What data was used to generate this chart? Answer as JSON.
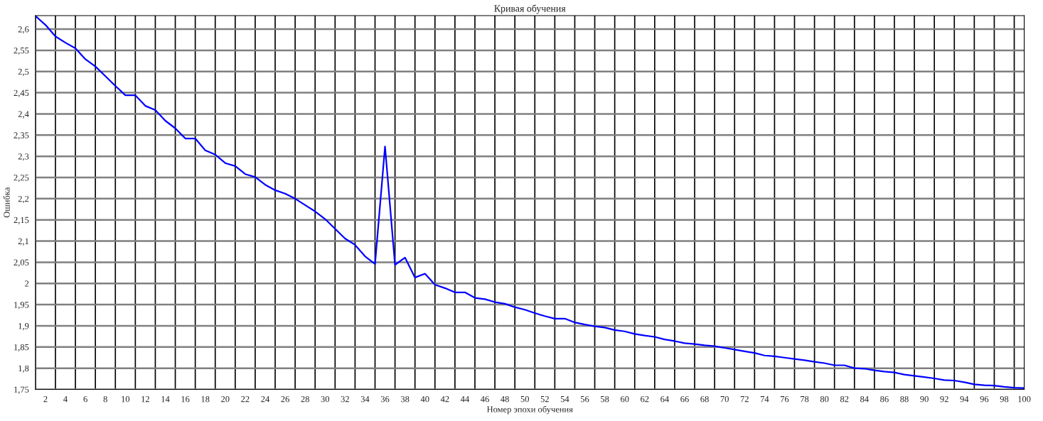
{
  "chart_data": {
    "type": "line",
    "title": "Кривая обучения",
    "xlabel": "Номер эпохи обучения",
    "ylabel": "Ошибка",
    "x": [
      1,
      2,
      3,
      4,
      5,
      6,
      7,
      8,
      9,
      10,
      11,
      12,
      13,
      14,
      15,
      16,
      17,
      18,
      19,
      20,
      21,
      22,
      23,
      24,
      25,
      26,
      27,
      28,
      29,
      30,
      31,
      32,
      33,
      34,
      35,
      36,
      37,
      38,
      39,
      40,
      41,
      42,
      43,
      44,
      45,
      46,
      47,
      48,
      49,
      50,
      51,
      52,
      53,
      54,
      55,
      56,
      57,
      58,
      59,
      60,
      61,
      62,
      63,
      64,
      65,
      66,
      67,
      68,
      69,
      70,
      71,
      72,
      73,
      74,
      75,
      76,
      77,
      78,
      79,
      80,
      81,
      82,
      83,
      84,
      85,
      86,
      87,
      88,
      89,
      90,
      91,
      92,
      93,
      94,
      95,
      96,
      97,
      98,
      99,
      100
    ],
    "series": [
      {
        "color": "#0000ff",
        "values": [
          2.631,
          2.61,
          2.583,
          2.568,
          2.555,
          2.529,
          2.512,
          2.489,
          2.466,
          2.444,
          2.444,
          2.419,
          2.409,
          2.384,
          2.366,
          2.342,
          2.342,
          2.314,
          2.304,
          2.284,
          2.277,
          2.258,
          2.251,
          2.233,
          2.22,
          2.212,
          2.2,
          2.185,
          2.17,
          2.152,
          2.129,
          2.106,
          2.091,
          2.064,
          2.046,
          2.323,
          2.044,
          2.061,
          2.014,
          2.023,
          1.997,
          1.989,
          1.979,
          1.979,
          1.966,
          1.963,
          1.956,
          1.952,
          1.944,
          1.938,
          1.93,
          1.923,
          1.917,
          1.917,
          1.908,
          1.903,
          1.899,
          1.896,
          1.89,
          1.887,
          1.881,
          1.877,
          1.874,
          1.868,
          1.864,
          1.859,
          1.857,
          1.854,
          1.852,
          1.848,
          1.844,
          1.84,
          1.836,
          1.83,
          1.828,
          1.825,
          1.822,
          1.819,
          1.815,
          1.812,
          1.807,
          1.807,
          1.8,
          1.799,
          1.795,
          1.792,
          1.79,
          1.785,
          1.782,
          1.779,
          1.776,
          1.772,
          1.771,
          1.767,
          1.762,
          1.76,
          1.759,
          1.756,
          1.754,
          1.753
        ]
      }
    ],
    "xlim": [
      1,
      100
    ],
    "xticks": [
      {
        "value": 1,
        "label": null
      },
      2,
      {
        "value": 3,
        "label": null
      },
      4,
      {
        "value": 5,
        "label": null
      },
      6,
      {
        "value": 7,
        "label": null
      },
      8,
      {
        "value": 9,
        "label": null
      },
      10,
      {
        "value": 11,
        "label": null
      },
      12,
      {
        "value": 13,
        "label": null
      },
      14,
      {
        "value": 15,
        "label": null
      },
      16,
      {
        "value": 17,
        "label": null
      },
      18,
      {
        "value": 19,
        "label": null
      },
      20,
      {
        "value": 21,
        "label": null
      },
      22,
      {
        "value": 23,
        "label": null
      },
      24,
      {
        "value": 25,
        "label": null
      },
      26,
      {
        "value": 27,
        "label": null
      },
      28,
      {
        "value": 29,
        "label": null
      },
      30,
      {
        "value": 31,
        "label": null
      },
      32,
      {
        "value": 33,
        "label": null
      },
      34,
      {
        "value": 35,
        "label": null
      },
      36,
      {
        "value": 37,
        "label": null
      },
      38,
      {
        "value": 39,
        "label": null
      },
      40,
      {
        "value": 41,
        "label": null
      },
      42,
      {
        "value": 43,
        "label": null
      },
      44,
      {
        "value": 45,
        "label": null
      },
      46,
      {
        "value": 47,
        "label": null
      },
      48,
      {
        "value": 49,
        "label": null
      },
      50,
      {
        "value": 51,
        "label": null
      },
      52,
      {
        "value": 53,
        "label": null
      },
      54,
      {
        "value": 55,
        "label": null
      },
      56,
      {
        "value": 57,
        "label": null
      },
      58,
      {
        "value": 59,
        "label": null
      },
      60,
      {
        "value": 61,
        "label": null
      },
      62,
      {
        "value": 63,
        "label": null
      },
      64,
      {
        "value": 65,
        "label": null
      },
      66,
      {
        "value": 67,
        "label": null
      },
      68,
      {
        "value": 69,
        "label": null
      },
      70,
      {
        "value": 71,
        "label": null
      },
      72,
      {
        "value": 73,
        "label": null
      },
      74,
      {
        "value": 75,
        "label": null
      },
      76,
      {
        "value": 77,
        "label": null
      },
      78,
      {
        "value": 79,
        "label": null
      },
      80,
      {
        "value": 81,
        "label": null
      },
      82,
      {
        "value": 83,
        "label": null
      },
      84,
      {
        "value": 85,
        "label": null
      },
      86,
      {
        "value": 87,
        "label": null
      },
      88,
      {
        "value": 89,
        "label": null
      },
      90,
      {
        "value": 91,
        "label": null
      },
      92,
      {
        "value": 93,
        "label": null
      },
      94,
      {
        "value": 95,
        "label": null
      },
      96,
      {
        "value": 97,
        "label": null
      },
      98,
      {
        "value": 99,
        "label": null
      },
      100
    ],
    "ylim": [
      1.75,
      2.632
    ],
    "yticks": [
      {
        "value": 1.75,
        "label": "1,75"
      },
      {
        "value": 1.8,
        "label": "1,8"
      },
      {
        "value": 1.85,
        "label": "1,85"
      },
      {
        "value": 1.9,
        "label": "1,9"
      },
      {
        "value": 1.95,
        "label": "1,95"
      },
      {
        "value": 2,
        "label": "2"
      },
      {
        "value": 2.05,
        "label": "2,05"
      },
      {
        "value": 2.1,
        "label": "2,1"
      },
      {
        "value": 2.15,
        "label": "2,15"
      },
      {
        "value": 2.2,
        "label": "2,2"
      },
      {
        "value": 2.25,
        "label": "2,25"
      },
      {
        "value": 2.3,
        "label": "2,3"
      },
      {
        "value": 2.35,
        "label": "2,35"
      },
      {
        "value": 2.4,
        "label": "2,4"
      },
      {
        "value": 2.45,
        "label": "2,45"
      },
      {
        "value": 2.5,
        "label": "2,5"
      },
      {
        "value": 2.55,
        "label": "2,55"
      },
      {
        "value": 2.6,
        "label": "2,6"
      }
    ],
    "grid": true,
    "legend": false,
    "marker": "none",
    "line_style": "solid"
  }
}
